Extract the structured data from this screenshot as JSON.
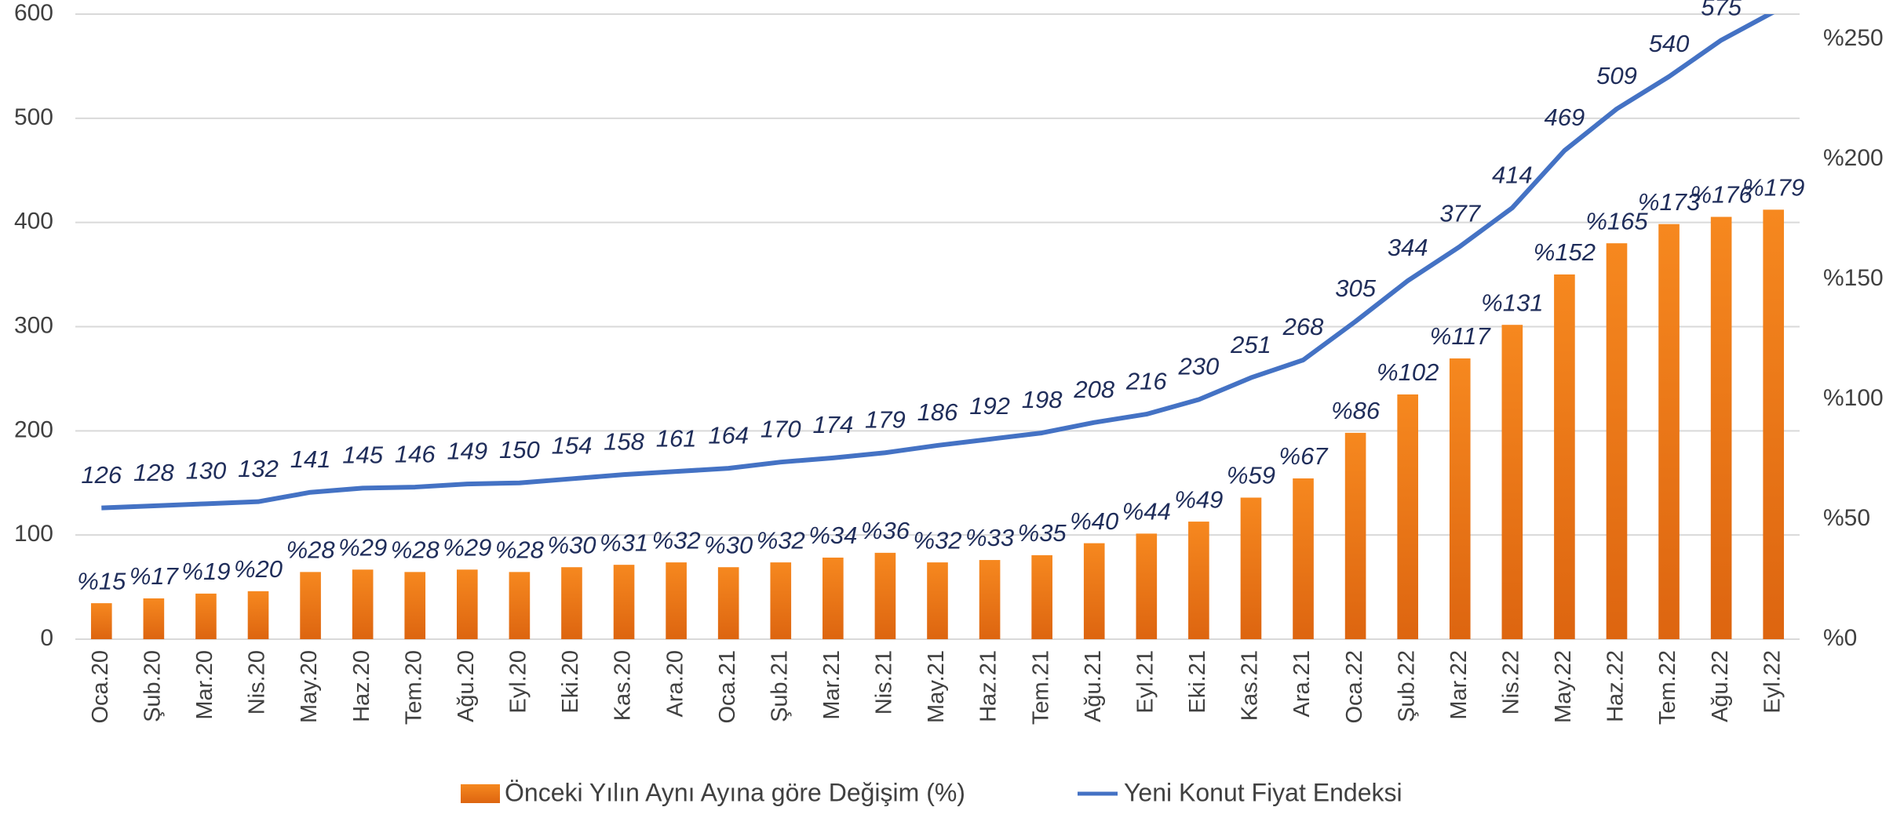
{
  "chart_data": {
    "type": "bar_line",
    "categories": [
      "Oca.20",
      "Şub.20",
      "Mar.20",
      "Nis.20",
      "May.20",
      "Haz.20",
      "Tem.20",
      "Ağu.20",
      "Eyl.20",
      "Eki.20",
      "Kas.20",
      "Ara.20",
      "Oca.21",
      "Şub.21",
      "Mar.21",
      "Nis.21",
      "May.21",
      "Haz.21",
      "Tem.21",
      "Ağu.21",
      "Eyl.21",
      "Eki.21",
      "Kas.21",
      "Ara.21",
      "Oca.22",
      "Şub.22",
      "Mar.22",
      "Nis.22",
      "May.22",
      "Haz.22",
      "Tem.22",
      "Ağu.22",
      "Eyl.22"
    ],
    "series": [
      {
        "name": "Önceki Yılın Aynı Ayına göre Değişim (%)",
        "type": "bar",
        "axis": "y2",
        "color": "#f07a1a",
        "values": [
          15,
          17,
          19,
          20,
          28,
          29,
          28,
          29,
          28,
          30,
          31,
          32,
          30,
          32,
          34,
          36,
          32,
          33,
          35,
          40,
          44,
          49,
          59,
          67,
          86,
          102,
          117,
          131,
          152,
          165,
          173,
          176,
          179
        ],
        "value_labels": [
          "%15",
          "%17",
          "%19",
          "%20",
          "%28",
          "%29",
          "%28",
          "%29",
          "%28",
          "%30",
          "%31",
          "%32",
          "%30",
          "%32",
          "%34",
          "%36",
          "%32",
          "%33",
          "%35",
          "%40",
          "%44",
          "%49",
          "%59",
          "%67",
          "%86",
          "%102",
          "%117",
          "%131",
          "%152",
          "%165",
          "%173",
          "%176",
          "%179"
        ]
      },
      {
        "name": "Yeni Konut Fiyat Endeksi",
        "type": "line",
        "axis": "y",
        "color": "#4472c4",
        "values": [
          126,
          128,
          130,
          132,
          141,
          145,
          146,
          149,
          150,
          154,
          158,
          161,
          164,
          170,
          174,
          179,
          186,
          192,
          198,
          208,
          216,
          230,
          251,
          268,
          305,
          344,
          377,
          414,
          469,
          509,
          540,
          575,
          602
        ]
      }
    ],
    "ylim": [
      0,
      600
    ],
    "yticks": [
      0,
      100,
      200,
      300,
      400,
      500,
      600
    ],
    "y2lim": [
      0,
      260.5
    ],
    "y2ticks": [
      {
        "value": 0,
        "label": "%0"
      },
      {
        "value": 50,
        "label": "%50"
      },
      {
        "value": 100,
        "label": "%100"
      },
      {
        "value": 150,
        "label": "%150"
      },
      {
        "value": 200,
        "label": "%200"
      },
      {
        "value": 250,
        "label": "%250"
      }
    ],
    "grid": true
  }
}
